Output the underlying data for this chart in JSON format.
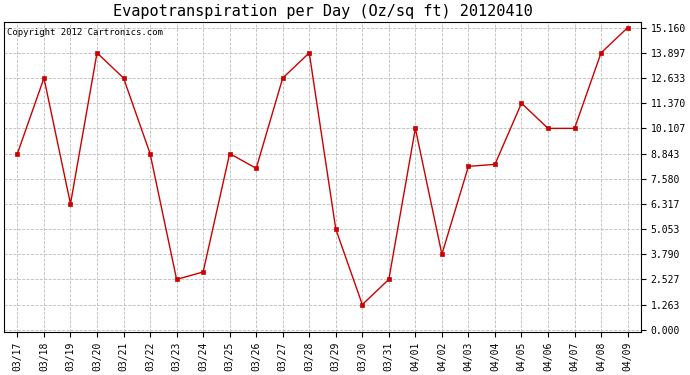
{
  "title": "Evapotranspiration per Day (Oz/sq ft) 20120410",
  "copyright_text": "Copyright 2012 Cartronics.com",
  "x_labels": [
    "03/17",
    "03/18",
    "03/19",
    "03/20",
    "03/21",
    "03/22",
    "03/23",
    "03/24",
    "03/25",
    "03/26",
    "03/27",
    "03/28",
    "03/29",
    "03/30",
    "03/31",
    "04/01",
    "04/02",
    "04/03",
    "04/04",
    "04/05",
    "04/06",
    "04/07",
    "04/08",
    "04/09"
  ],
  "y_values": [
    8.843,
    12.633,
    6.317,
    13.897,
    12.633,
    8.843,
    2.527,
    2.9,
    8.843,
    8.1,
    12.633,
    13.897,
    5.053,
    1.263,
    2.527,
    10.107,
    3.79,
    8.2,
    8.3,
    11.37,
    10.107,
    10.107,
    13.897,
    15.16
  ],
  "line_color": "#cc0000",
  "marker": "s",
  "marker_size": 3,
  "marker_color": "#cc0000",
  "background_color": "#ffffff",
  "plot_bg_color": "#ffffff",
  "grid_color": "#bbbbbb",
  "ylim_min": 0.0,
  "ylim_max": 15.16,
  "yticks": [
    0.0,
    1.263,
    2.527,
    3.79,
    5.053,
    6.317,
    7.58,
    8.843,
    10.107,
    11.37,
    12.633,
    13.897,
    15.16
  ],
  "title_fontsize": 11,
  "tick_fontsize": 7,
  "copyright_fontsize": 6.5
}
